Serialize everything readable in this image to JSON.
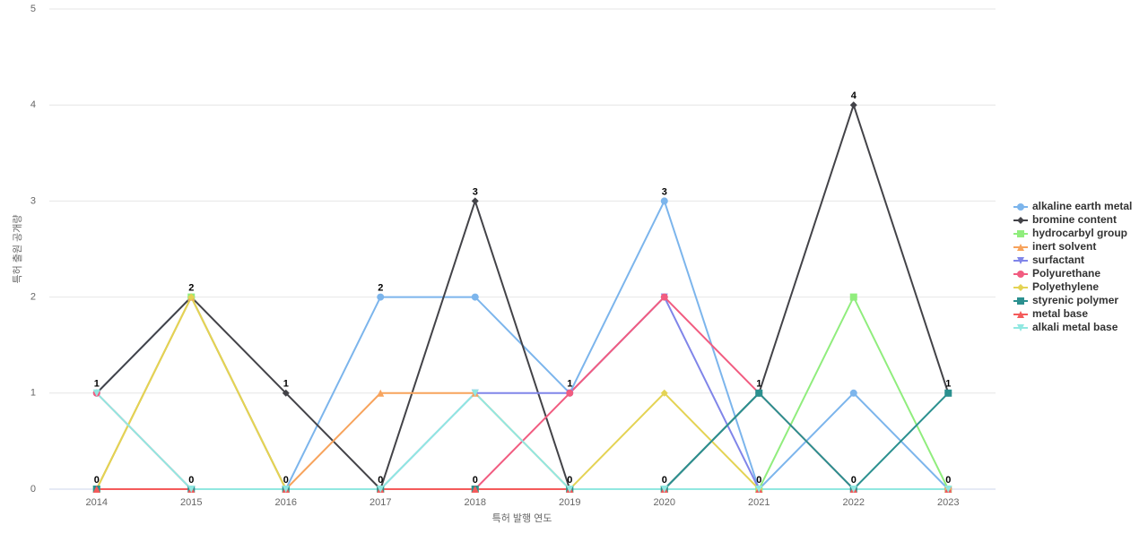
{
  "chart_data": {
    "type": "line",
    "x_label": "특허 발행 연도",
    "y_label": "특허 출원 공개량",
    "categories": [
      "2014",
      "2015",
      "2016",
      "2017",
      "2018",
      "2019",
      "2020",
      "2021",
      "2022",
      "2023"
    ],
    "ylim": [
      0,
      5
    ],
    "yticks": [
      0,
      1,
      2,
      3,
      4,
      5
    ],
    "grid": true,
    "legend": "right",
    "series": [
      {
        "name": "alkaline earth metal",
        "color": "#7cb5ec",
        "marker": "circle",
        "values": [
          1,
          2,
          0,
          2,
          2,
          1,
          3,
          0,
          1,
          0
        ]
      },
      {
        "name": "bromine content",
        "color": "#434348",
        "marker": "diamond",
        "values": [
          1,
          2,
          1,
          0,
          3,
          0,
          0,
          1,
          4,
          1
        ]
      },
      {
        "name": "hydrocarbyl group",
        "color": "#90ed7d",
        "marker": "square",
        "values": [
          0,
          2,
          0,
          0,
          0,
          0,
          0,
          0,
          2,
          0
        ]
      },
      {
        "name": "inert solvent",
        "color": "#f7a35c",
        "marker": "triangle",
        "values": [
          0,
          2,
          0,
          1,
          1,
          0,
          0,
          0,
          0,
          0
        ]
      },
      {
        "name": "surfactant",
        "color": "#8085e9",
        "marker": "triangle-down",
        "values": [
          0,
          0,
          0,
          0,
          1,
          1,
          2,
          0,
          0,
          0
        ]
      },
      {
        "name": "Polyurethane",
        "color": "#f15c80",
        "marker": "circle",
        "values": [
          1,
          0,
          0,
          0,
          0,
          1,
          2,
          1,
          0,
          0
        ]
      },
      {
        "name": "Polyethylene",
        "color": "#e4d354",
        "marker": "diamond",
        "values": [
          0,
          2,
          0,
          0,
          0,
          0,
          1,
          0,
          0,
          0
        ]
      },
      {
        "name": "styrenic polymer",
        "color": "#2b908f",
        "marker": "square",
        "values": [
          0,
          0,
          0,
          0,
          0,
          0,
          0,
          1,
          0,
          1
        ]
      },
      {
        "name": "metal base",
        "color": "#f45b5b",
        "marker": "triangle",
        "values": [
          0,
          0,
          0,
          0,
          0,
          0,
          0,
          0,
          0,
          0
        ]
      },
      {
        "name": "alkali metal base",
        "color": "#91e8e1",
        "marker": "triangle-down",
        "values": [
          1,
          0,
          0,
          0,
          1,
          0,
          0,
          0,
          0,
          0
        ]
      }
    ]
  }
}
